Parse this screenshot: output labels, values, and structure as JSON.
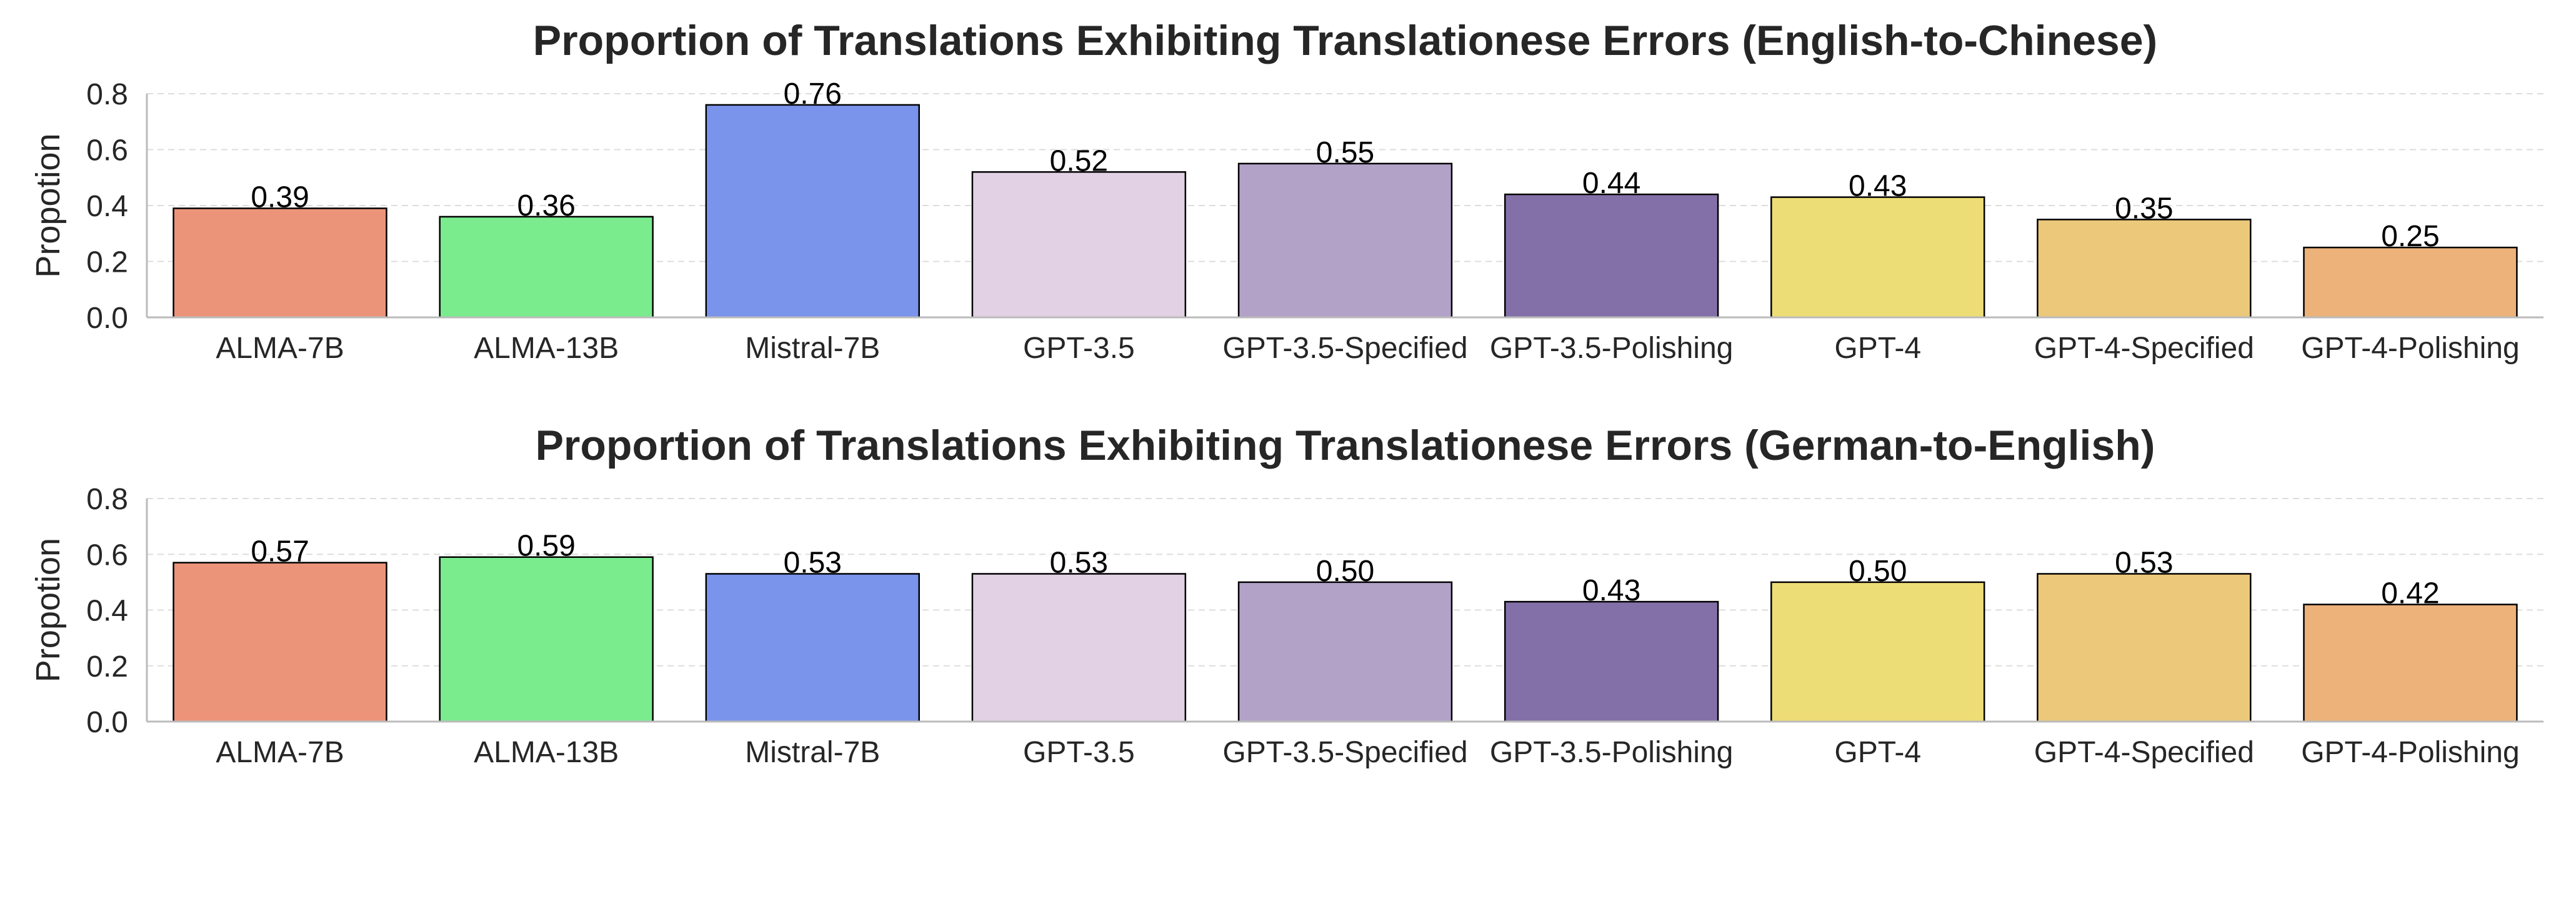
{
  "chart_data": [
    {
      "type": "bar",
      "title": "Proportion of Translations Exhibiting Translationese Errors (English-to-Chinese)",
      "xlabel": "",
      "ylabel": "Propotion",
      "ylim": [
        0,
        0.8
      ],
      "yticks": [
        "0.0",
        "0.2",
        "0.4",
        "0.6",
        "0.8"
      ],
      "grid": true,
      "categories": [
        "ALMA-7B",
        "ALMA-13B",
        "Mistral-7B",
        "GPT-3.5",
        "GPT-3.5-Specified",
        "GPT-3.5-Polishing",
        "GPT-4",
        "GPT-4-Specified",
        "GPT-4-Polishing"
      ],
      "values": [
        0.39,
        0.36,
        0.76,
        0.52,
        0.55,
        0.44,
        0.43,
        0.35,
        0.25
      ],
      "labels": [
        "0.39",
        "0.36",
        "0.76",
        "0.52",
        "0.55",
        "0.44",
        "0.43",
        "0.35",
        "0.25"
      ],
      "colors": [
        "#EC947A",
        "#7AEC8E",
        "#7A94EC",
        "#E2D0E4",
        "#B3A2C8",
        "#8470A8",
        "#EDDD76",
        "#ECC87A",
        "#ECB27A"
      ]
    },
    {
      "type": "bar",
      "title": "Proportion of Translations Exhibiting Translationese Errors (German-to-English)",
      "xlabel": "",
      "ylabel": "Propotion",
      "ylim": [
        0,
        0.8
      ],
      "yticks": [
        "0.0",
        "0.2",
        "0.4",
        "0.6",
        "0.8"
      ],
      "grid": true,
      "categories": [
        "ALMA-7B",
        "ALMA-13B",
        "Mistral-7B",
        "GPT-3.5",
        "GPT-3.5-Specified",
        "GPT-3.5-Polishing",
        "GPT-4",
        "GPT-4-Specified",
        "GPT-4-Polishing"
      ],
      "values": [
        0.57,
        0.59,
        0.53,
        0.53,
        0.5,
        0.43,
        0.5,
        0.53,
        0.42
      ],
      "labels": [
        "0.57",
        "0.59",
        "0.53",
        "0.53",
        "0.50",
        "0.43",
        "0.50",
        "0.53",
        "0.42"
      ],
      "colors": [
        "#EC947A",
        "#7AEC8E",
        "#7A94EC",
        "#E2D0E4",
        "#B3A2C8",
        "#8470A8",
        "#EDDD76",
        "#ECC87A",
        "#ECB27A"
      ]
    }
  ]
}
